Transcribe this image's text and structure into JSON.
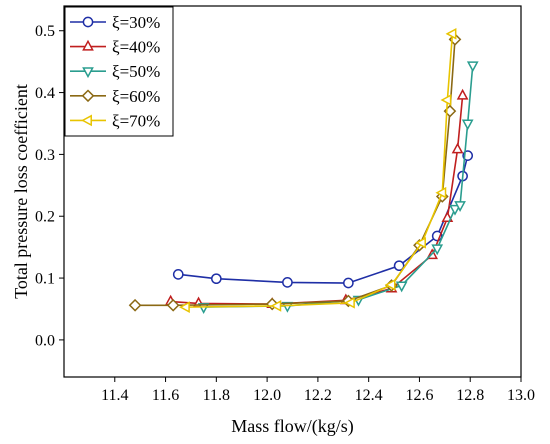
{
  "chart_data": {
    "type": "line",
    "title": "",
    "xlabel": "Mass flow/(kg/s)",
    "ylabel": "Total pressure loss coefficient",
    "xlim": [
      11.2,
      13.0
    ],
    "ylim": [
      -0.06,
      0.54
    ],
    "xticks": [
      11.4,
      11.6,
      11.8,
      12.0,
      12.2,
      12.4,
      12.6,
      12.8,
      13.0
    ],
    "xtick_labels": [
      "11.4",
      "11.6",
      "11.8",
      "12.0",
      "12.2",
      "12.4",
      "12.6",
      "12.8",
      "13.0"
    ],
    "yticks": [
      0.0,
      0.1,
      0.2,
      0.3,
      0.4,
      0.5
    ],
    "ytick_labels": [
      "0.0",
      "0.1",
      "0.2",
      "0.3",
      "0.4",
      "0.5"
    ],
    "grid": false,
    "legend_position": "top-left",
    "series": [
      {
        "name": "ξ=30%",
        "color": "#1f2fa6",
        "marker": "circle",
        "x": [
          11.65,
          11.8,
          12.08,
          12.32,
          12.52,
          12.67,
          12.77,
          12.79
        ],
        "y": [
          0.106,
          0.099,
          0.093,
          0.092,
          0.12,
          0.168,
          0.265,
          0.298
        ]
      },
      {
        "name": "ξ=40%",
        "color": "#c01f1f",
        "marker": "triangle-up",
        "x": [
          11.62,
          11.73,
          12.02,
          12.31,
          12.49,
          12.65,
          12.71,
          12.75,
          12.77
        ],
        "y": [
          0.062,
          0.059,
          0.058,
          0.064,
          0.083,
          0.137,
          0.197,
          0.308,
          0.395
        ]
      },
      {
        "name": "ξ=50%",
        "color": "#2a9d8f",
        "marker": "triangle-down",
        "x": [
          11.75,
          12.08,
          12.36,
          12.53,
          12.67,
          12.74,
          12.76,
          12.79,
          12.81
        ],
        "y": [
          0.053,
          0.055,
          0.065,
          0.088,
          0.148,
          0.212,
          0.218,
          0.35,
          0.444
        ]
      },
      {
        "name": "ξ=60%",
        "color": "#8b6914",
        "marker": "diamond",
        "x": [
          11.48,
          11.63,
          12.02,
          12.32,
          12.49,
          12.6,
          12.69,
          12.72,
          12.74
        ],
        "y": [
          0.056,
          0.056,
          0.058,
          0.063,
          0.088,
          0.153,
          0.232,
          0.37,
          0.486
        ]
      },
      {
        "name": "ξ=70%",
        "color": "#e8c400",
        "marker": "triangle-left",
        "x": [
          11.68,
          12.04,
          12.33,
          12.49,
          12.61,
          12.69,
          12.71,
          12.73
        ],
        "y": [
          0.053,
          0.055,
          0.06,
          0.089,
          0.157,
          0.238,
          0.388,
          0.495
        ]
      }
    ]
  }
}
